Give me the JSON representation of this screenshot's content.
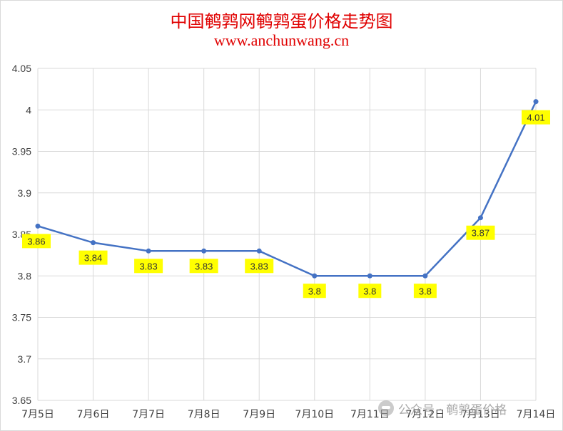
{
  "chart_data": {
    "type": "line",
    "title": "中国鹌鹑网鹌鹑蛋价格走势图",
    "subtitle": "www.anchunwang.cn",
    "xlabel": "",
    "ylabel": "",
    "categories": [
      "7月5日",
      "7月6日",
      "7月7日",
      "7月8日",
      "7月9日",
      "7月10日",
      "7月11日",
      "7月12日",
      "7月13日",
      "7月14日"
    ],
    "series": [
      {
        "values": [
          3.86,
          3.84,
          3.83,
          3.83,
          3.83,
          3.8,
          3.8,
          3.8,
          3.87,
          4.01
        ],
        "labels": [
          "3.86",
          "3.84",
          "3.83",
          "3.83",
          "3.83",
          "3.8",
          "3.8",
          "3.8",
          "3.87",
          "4.01"
        ]
      }
    ],
    "ylim": [
      3.65,
      4.05
    ],
    "yticks": [
      3.65,
      3.7,
      3.75,
      3.8,
      3.85,
      3.9,
      3.95,
      4,
      4.05
    ],
    "ytick_labels": [
      "3.65",
      "3.7",
      "3.75",
      "3.8",
      "3.85",
      "3.9",
      "3.95",
      "4",
      "4.05"
    ],
    "grid": true,
    "line_color": "#4472c4",
    "label_bg_color": "#ffff00"
  },
  "watermark": {
    "text": "公众号 · 鹌鹑蛋价格",
    "icon": "wechat-icon"
  }
}
